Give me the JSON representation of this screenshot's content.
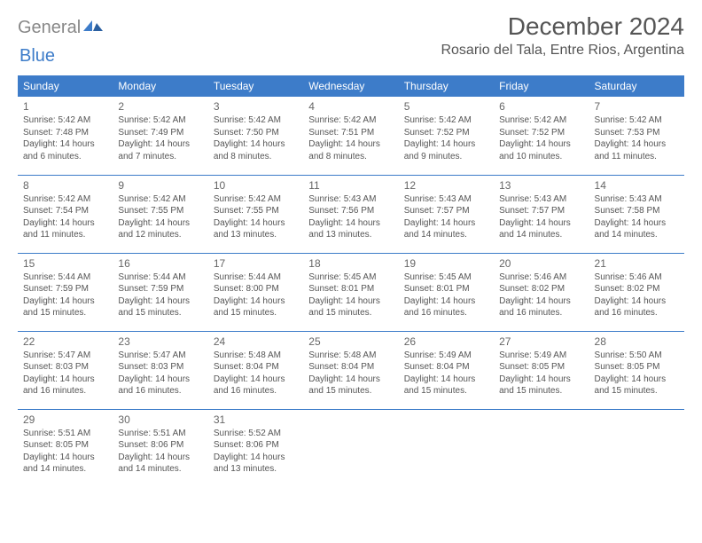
{
  "logo": {
    "word1": "General",
    "word2": "Blue"
  },
  "title": "December 2024",
  "location": "Rosario del Tala, Entre Rios, Argentina",
  "colors": {
    "header_bg": "#3d7cc9",
    "header_fg": "#ffffff",
    "text": "#555555",
    "border": "#3d7cc9",
    "background": "#ffffff"
  },
  "fonts": {
    "title_pt": 28,
    "location_pt": 16,
    "dayhead_pt": 12,
    "cell_pt": 10
  },
  "day_headers": [
    "Sunday",
    "Monday",
    "Tuesday",
    "Wednesday",
    "Thursday",
    "Friday",
    "Saturday"
  ],
  "weeks": [
    [
      {
        "n": "1",
        "sr": "5:42 AM",
        "ss": "7:48 PM",
        "dl": "14 hours and 6 minutes."
      },
      {
        "n": "2",
        "sr": "5:42 AM",
        "ss": "7:49 PM",
        "dl": "14 hours and 7 minutes."
      },
      {
        "n": "3",
        "sr": "5:42 AM",
        "ss": "7:50 PM",
        "dl": "14 hours and 8 minutes."
      },
      {
        "n": "4",
        "sr": "5:42 AM",
        "ss": "7:51 PM",
        "dl": "14 hours and 8 minutes."
      },
      {
        "n": "5",
        "sr": "5:42 AM",
        "ss": "7:52 PM",
        "dl": "14 hours and 9 minutes."
      },
      {
        "n": "6",
        "sr": "5:42 AM",
        "ss": "7:52 PM",
        "dl": "14 hours and 10 minutes."
      },
      {
        "n": "7",
        "sr": "5:42 AM",
        "ss": "7:53 PM",
        "dl": "14 hours and 11 minutes."
      }
    ],
    [
      {
        "n": "8",
        "sr": "5:42 AM",
        "ss": "7:54 PM",
        "dl": "14 hours and 11 minutes."
      },
      {
        "n": "9",
        "sr": "5:42 AM",
        "ss": "7:55 PM",
        "dl": "14 hours and 12 minutes."
      },
      {
        "n": "10",
        "sr": "5:42 AM",
        "ss": "7:55 PM",
        "dl": "14 hours and 13 minutes."
      },
      {
        "n": "11",
        "sr": "5:43 AM",
        "ss": "7:56 PM",
        "dl": "14 hours and 13 minutes."
      },
      {
        "n": "12",
        "sr": "5:43 AM",
        "ss": "7:57 PM",
        "dl": "14 hours and 14 minutes."
      },
      {
        "n": "13",
        "sr": "5:43 AM",
        "ss": "7:57 PM",
        "dl": "14 hours and 14 minutes."
      },
      {
        "n": "14",
        "sr": "5:43 AM",
        "ss": "7:58 PM",
        "dl": "14 hours and 14 minutes."
      }
    ],
    [
      {
        "n": "15",
        "sr": "5:44 AM",
        "ss": "7:59 PM",
        "dl": "14 hours and 15 minutes."
      },
      {
        "n": "16",
        "sr": "5:44 AM",
        "ss": "7:59 PM",
        "dl": "14 hours and 15 minutes."
      },
      {
        "n": "17",
        "sr": "5:44 AM",
        "ss": "8:00 PM",
        "dl": "14 hours and 15 minutes."
      },
      {
        "n": "18",
        "sr": "5:45 AM",
        "ss": "8:01 PM",
        "dl": "14 hours and 15 minutes."
      },
      {
        "n": "19",
        "sr": "5:45 AM",
        "ss": "8:01 PM",
        "dl": "14 hours and 16 minutes."
      },
      {
        "n": "20",
        "sr": "5:46 AM",
        "ss": "8:02 PM",
        "dl": "14 hours and 16 minutes."
      },
      {
        "n": "21",
        "sr": "5:46 AM",
        "ss": "8:02 PM",
        "dl": "14 hours and 16 minutes."
      }
    ],
    [
      {
        "n": "22",
        "sr": "5:47 AM",
        "ss": "8:03 PM",
        "dl": "14 hours and 16 minutes."
      },
      {
        "n": "23",
        "sr": "5:47 AM",
        "ss": "8:03 PM",
        "dl": "14 hours and 16 minutes."
      },
      {
        "n": "24",
        "sr": "5:48 AM",
        "ss": "8:04 PM",
        "dl": "14 hours and 16 minutes."
      },
      {
        "n": "25",
        "sr": "5:48 AM",
        "ss": "8:04 PM",
        "dl": "14 hours and 15 minutes."
      },
      {
        "n": "26",
        "sr": "5:49 AM",
        "ss": "8:04 PM",
        "dl": "14 hours and 15 minutes."
      },
      {
        "n": "27",
        "sr": "5:49 AM",
        "ss": "8:05 PM",
        "dl": "14 hours and 15 minutes."
      },
      {
        "n": "28",
        "sr": "5:50 AM",
        "ss": "8:05 PM",
        "dl": "14 hours and 15 minutes."
      }
    ],
    [
      {
        "n": "29",
        "sr": "5:51 AM",
        "ss": "8:05 PM",
        "dl": "14 hours and 14 minutes."
      },
      {
        "n": "30",
        "sr": "5:51 AM",
        "ss": "8:06 PM",
        "dl": "14 hours and 14 minutes."
      },
      {
        "n": "31",
        "sr": "5:52 AM",
        "ss": "8:06 PM",
        "dl": "14 hours and 13 minutes."
      },
      null,
      null,
      null,
      null
    ]
  ],
  "labels": {
    "sunrise": "Sunrise:",
    "sunset": "Sunset:",
    "daylight": "Daylight:"
  }
}
